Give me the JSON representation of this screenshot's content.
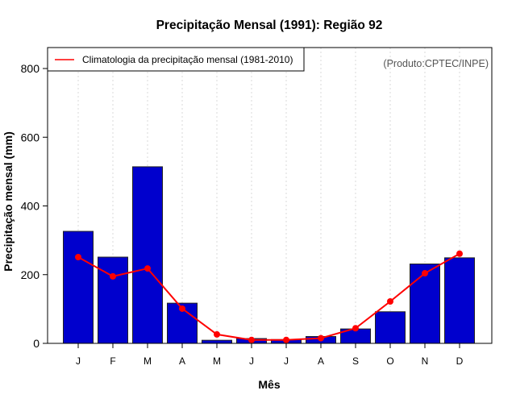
{
  "chart_data": {
    "type": "bar",
    "title": "Precipitação Mensal (1991): Região 92",
    "xlabel": "Mês",
    "ylabel": "Precipitação mensal (mm)",
    "ylim": [
      0,
      860
    ],
    "yticks": [
      0,
      200,
      400,
      600,
      800
    ],
    "categories": [
      "J",
      "F",
      "M",
      "A",
      "M",
      "J",
      "J",
      "A",
      "S",
      "O",
      "N",
      "D"
    ],
    "grid": "vertical-dotted",
    "series": [
      {
        "name": "Precipitação mensal (1991)",
        "type": "bar",
        "color": "#0000CD",
        "values": [
          326,
          251,
          514,
          117,
          9,
          14,
          11,
          20,
          42,
          92,
          231,
          249
        ]
      },
      {
        "name": "Climatologia da precipitação mensal (1981-2010)",
        "type": "line",
        "color": "#FF0000",
        "values": [
          251,
          195,
          218,
          101,
          26,
          10,
          10,
          15,
          44,
          122,
          204,
          261
        ]
      }
    ],
    "legend": {
      "placement": "top-left",
      "entries": [
        "Climatologia da precipitação mensal (1981-2010)"
      ]
    },
    "annotations": [
      "(Produto:CPTEC/INPE)"
    ]
  }
}
